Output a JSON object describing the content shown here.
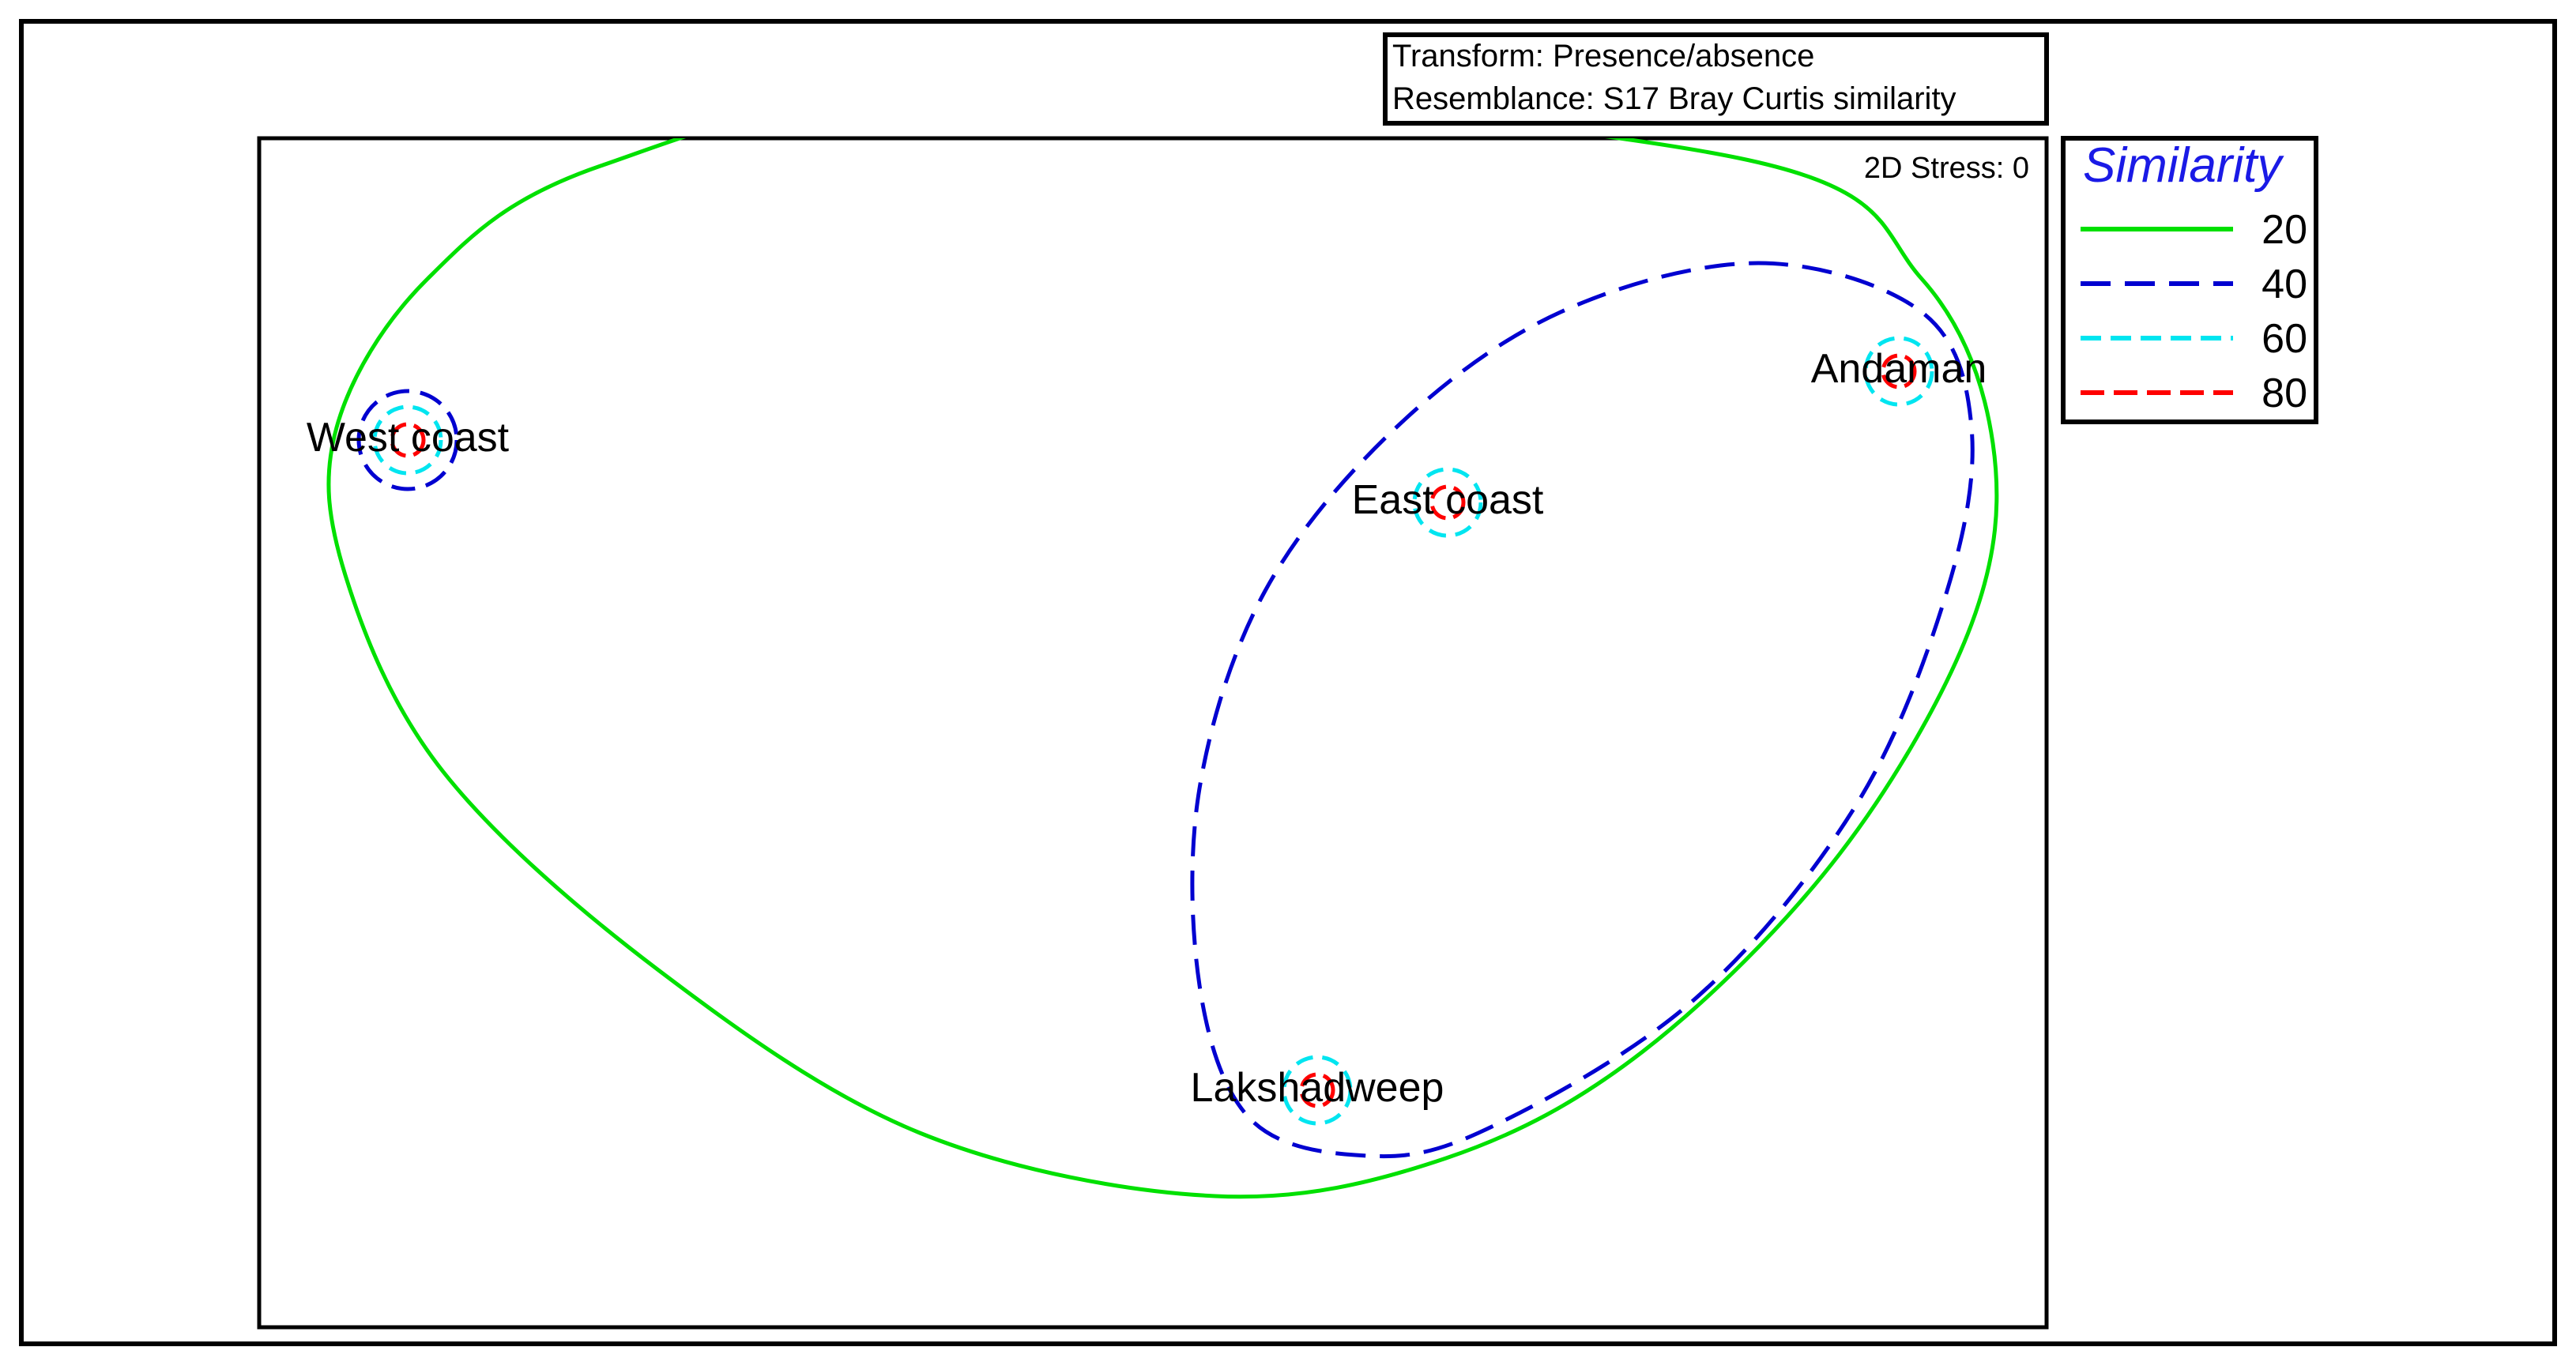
{
  "chart_data": {
    "type": "scatter",
    "subtype": "nMDS ordination with similarity contours",
    "info_box": {
      "line1": "Transform: Presence/absence",
      "line2": "Resemblance: S17 Bray Curtis similarity"
    },
    "stress_label": "2D Stress: 0",
    "legend": {
      "title": "Similarity",
      "title_color": "#1a1ae6",
      "placement": "right",
      "entries": [
        {
          "label": "20",
          "color": "#00e000",
          "style": "solid"
        },
        {
          "label": "40",
          "color": "#0000d0",
          "style": "dashed"
        },
        {
          "label": "60",
          "color": "#00e5f0",
          "style": "dashed"
        },
        {
          "label": "80",
          "color": "#ff0000",
          "style": "dashed"
        }
      ]
    },
    "points": [
      {
        "label": "West coast"
      },
      {
        "label": "East coast"
      },
      {
        "label": "Andaman"
      },
      {
        "label": "Lakshadweep"
      }
    ],
    "axes_shown": false,
    "grid": false
  }
}
